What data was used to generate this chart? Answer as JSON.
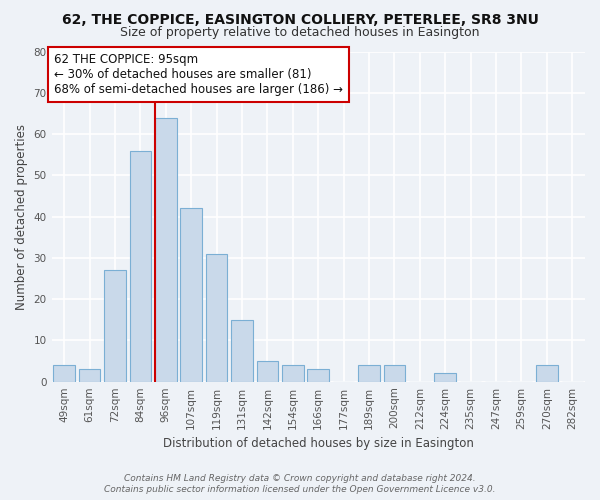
{
  "title": "62, THE COPPICE, EASINGTON COLLIERY, PETERLEE, SR8 3NU",
  "subtitle": "Size of property relative to detached houses in Easington",
  "xlabel": "Distribution of detached houses by size in Easington",
  "ylabel": "Number of detached properties",
  "categories": [
    "49sqm",
    "61sqm",
    "72sqm",
    "84sqm",
    "96sqm",
    "107sqm",
    "119sqm",
    "131sqm",
    "142sqm",
    "154sqm",
    "166sqm",
    "177sqm",
    "189sqm",
    "200sqm",
    "212sqm",
    "224sqm",
    "235sqm",
    "247sqm",
    "259sqm",
    "270sqm",
    "282sqm"
  ],
  "values": [
    4,
    3,
    27,
    56,
    64,
    42,
    31,
    15,
    5,
    4,
    3,
    0,
    4,
    4,
    0,
    2,
    0,
    0,
    0,
    4,
    0
  ],
  "bar_color": "#c9d9ea",
  "bar_edge_color": "#7bafd4",
  "vline_index": 4,
  "vline_color": "#cc0000",
  "annotation_line1": "62 THE COPPICE: 95sqm",
  "annotation_line2": "← 30% of detached houses are smaller (81)",
  "annotation_line3": "68% of semi-detached houses are larger (186) →",
  "annotation_box_color": "#ffffff",
  "annotation_box_edge_color": "#cc0000",
  "ylim": [
    0,
    80
  ],
  "yticks": [
    0,
    10,
    20,
    30,
    40,
    50,
    60,
    70,
    80
  ],
  "footer_line1": "Contains HM Land Registry data © Crown copyright and database right 2024.",
  "footer_line2": "Contains public sector information licensed under the Open Government Licence v3.0.",
  "background_color": "#eef2f7",
  "grid_color": "#ffffff",
  "title_fontsize": 10,
  "subtitle_fontsize": 9,
  "axis_label_fontsize": 8.5,
  "tick_fontsize": 7.5,
  "annotation_fontsize": 8.5,
  "footer_fontsize": 6.5
}
